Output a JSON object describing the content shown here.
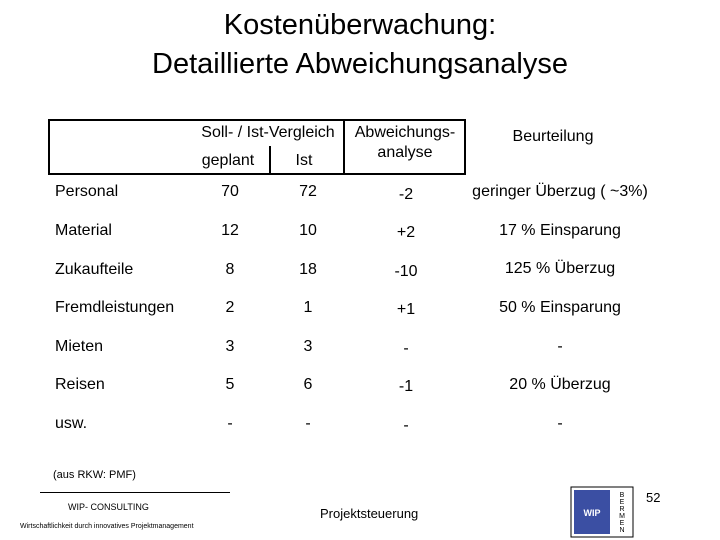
{
  "title": {
    "line1": "Kostenüberwachung:",
    "line2": "Detaillierte Abweichungsanalyse"
  },
  "table": {
    "header": {
      "soll_ist": "Soll- / Ist-Vergleich",
      "geplant": "geplant",
      "ist": "Ist",
      "abweichung_line1": "Abweichungs-",
      "abweichung_line2": "analyse",
      "beurteilung": "Beurteilung"
    },
    "rows": [
      {
        "label": "Personal",
        "geplant": "70",
        "ist": "72",
        "abweichung": "-2",
        "beurteilung": "geringer Überzug ( ~3%)"
      },
      {
        "label": "Material",
        "geplant": "12",
        "ist": "10",
        "abweichung": "+2",
        "beurteilung": "17 % Einsparung"
      },
      {
        "label": "Zukaufteile",
        "geplant": "8",
        "ist": "18",
        "abweichung": "-10",
        "beurteilung": "125 % Überzug"
      },
      {
        "label": "Fremdleistungen",
        "geplant": "2",
        "ist": "1",
        "abweichung": "+1",
        "beurteilung": "50 % Einsparung"
      },
      {
        "label": "Mieten",
        "geplant": "3",
        "ist": "3",
        "abweichung": "-",
        "beurteilung": "-"
      },
      {
        "label": "Reisen",
        "geplant": "5",
        "ist": "6",
        "abweichung": "-1",
        "beurteilung": "20 % Überzug"
      },
      {
        "label": "usw.",
        "geplant": "-",
        "ist": "-",
        "abweichung": "-",
        "beurteilung": "-"
      }
    ]
  },
  "source": "(aus RKW: PMF)",
  "footer": {
    "company": "WIP- CONSULTING",
    "tagline": "Wirtschaftlichkeit durch innovatives Projektmanagement",
    "center": "Projektsteuerung",
    "page_number": "52"
  },
  "logo": {
    "box_text": "WIP",
    "side_letters": [
      "B",
      "E",
      "R",
      "M",
      "E",
      "N"
    ],
    "color": "#3b4fa3"
  }
}
